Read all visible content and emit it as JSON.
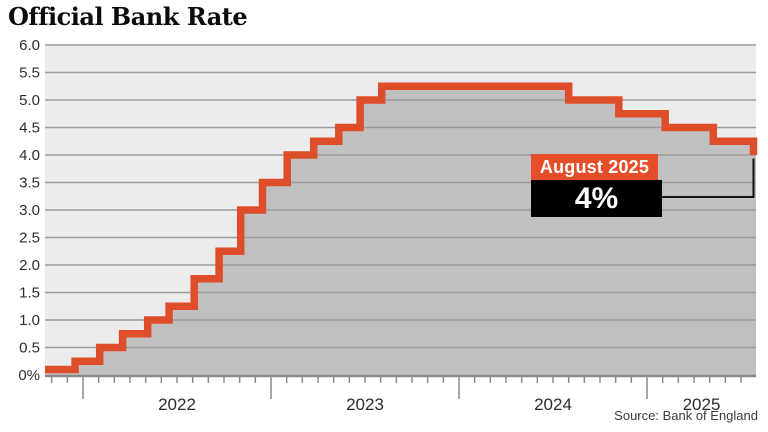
{
  "title": "Official Bank Rate",
  "source": "Source: Bank of England",
  "annotation": {
    "label": "August 2025",
    "value": "4%"
  },
  "colors": {
    "line": "#df4e2a",
    "annotation_label_bg": "#e44e28",
    "annotation_value_bg": "#000000",
    "annotation_text": "#ffffff",
    "plot_background": "#ececec",
    "area_fill": "#c1c0c0",
    "gridline": "#9b9b9b",
    "axis": "#8a8a8a",
    "tick_text": "#2d2d2d",
    "connector": "#111111"
  },
  "chart_data": {
    "type": "line",
    "subtype": "step-area",
    "title": "Official Bank Rate",
    "unit": "percent",
    "grid": true,
    "ylim": [
      0,
      6
    ],
    "y_tick_values": [
      6,
      5.5,
      5,
      4.5,
      4,
      3.5,
      3,
      2.5,
      2,
      1.5,
      1,
      0.5,
      0
    ],
    "y_tick_labels": [
      "6.0",
      "5.5",
      "5.0",
      "4.5",
      "4.0",
      "3.5",
      "3.0",
      "2.5",
      "2.0",
      "1.5",
      "1.0",
      "0.5",
      "0%"
    ],
    "x_tick_labels": [
      "2022",
      "2023",
      "2024",
      "2025"
    ],
    "x_range": [
      "2021-10-18",
      "2025-08-07"
    ],
    "series": [
      {
        "name": "Official Bank Rate",
        "points": [
          {
            "date": "2021-10-18",
            "value": 0.1
          },
          {
            "date": "2021-12-16",
            "value": 0.25
          },
          {
            "date": "2022-02-03",
            "value": 0.5
          },
          {
            "date": "2022-03-17",
            "value": 0.75
          },
          {
            "date": "2022-05-05",
            "value": 1.0
          },
          {
            "date": "2022-06-16",
            "value": 1.25
          },
          {
            "date": "2022-08-04",
            "value": 1.75
          },
          {
            "date": "2022-09-22",
            "value": 2.25
          },
          {
            "date": "2022-11-03",
            "value": 3.0
          },
          {
            "date": "2022-12-15",
            "value": 3.5
          },
          {
            "date": "2023-02-02",
            "value": 4.0
          },
          {
            "date": "2023-03-23",
            "value": 4.25
          },
          {
            "date": "2023-05-11",
            "value": 4.5
          },
          {
            "date": "2023-06-22",
            "value": 5.0
          },
          {
            "date": "2023-08-03",
            "value": 5.25
          },
          {
            "date": "2024-08-01",
            "value": 5.0
          },
          {
            "date": "2024-11-07",
            "value": 4.75
          },
          {
            "date": "2025-02-06",
            "value": 4.5
          },
          {
            "date": "2025-05-08",
            "value": 4.25
          },
          {
            "date": "2025-08-07",
            "value": 4.0
          }
        ]
      }
    ],
    "annotation": {
      "date": "2025-08-07",
      "label": "August 2025",
      "value": 4.0,
      "value_label": "4%"
    }
  }
}
